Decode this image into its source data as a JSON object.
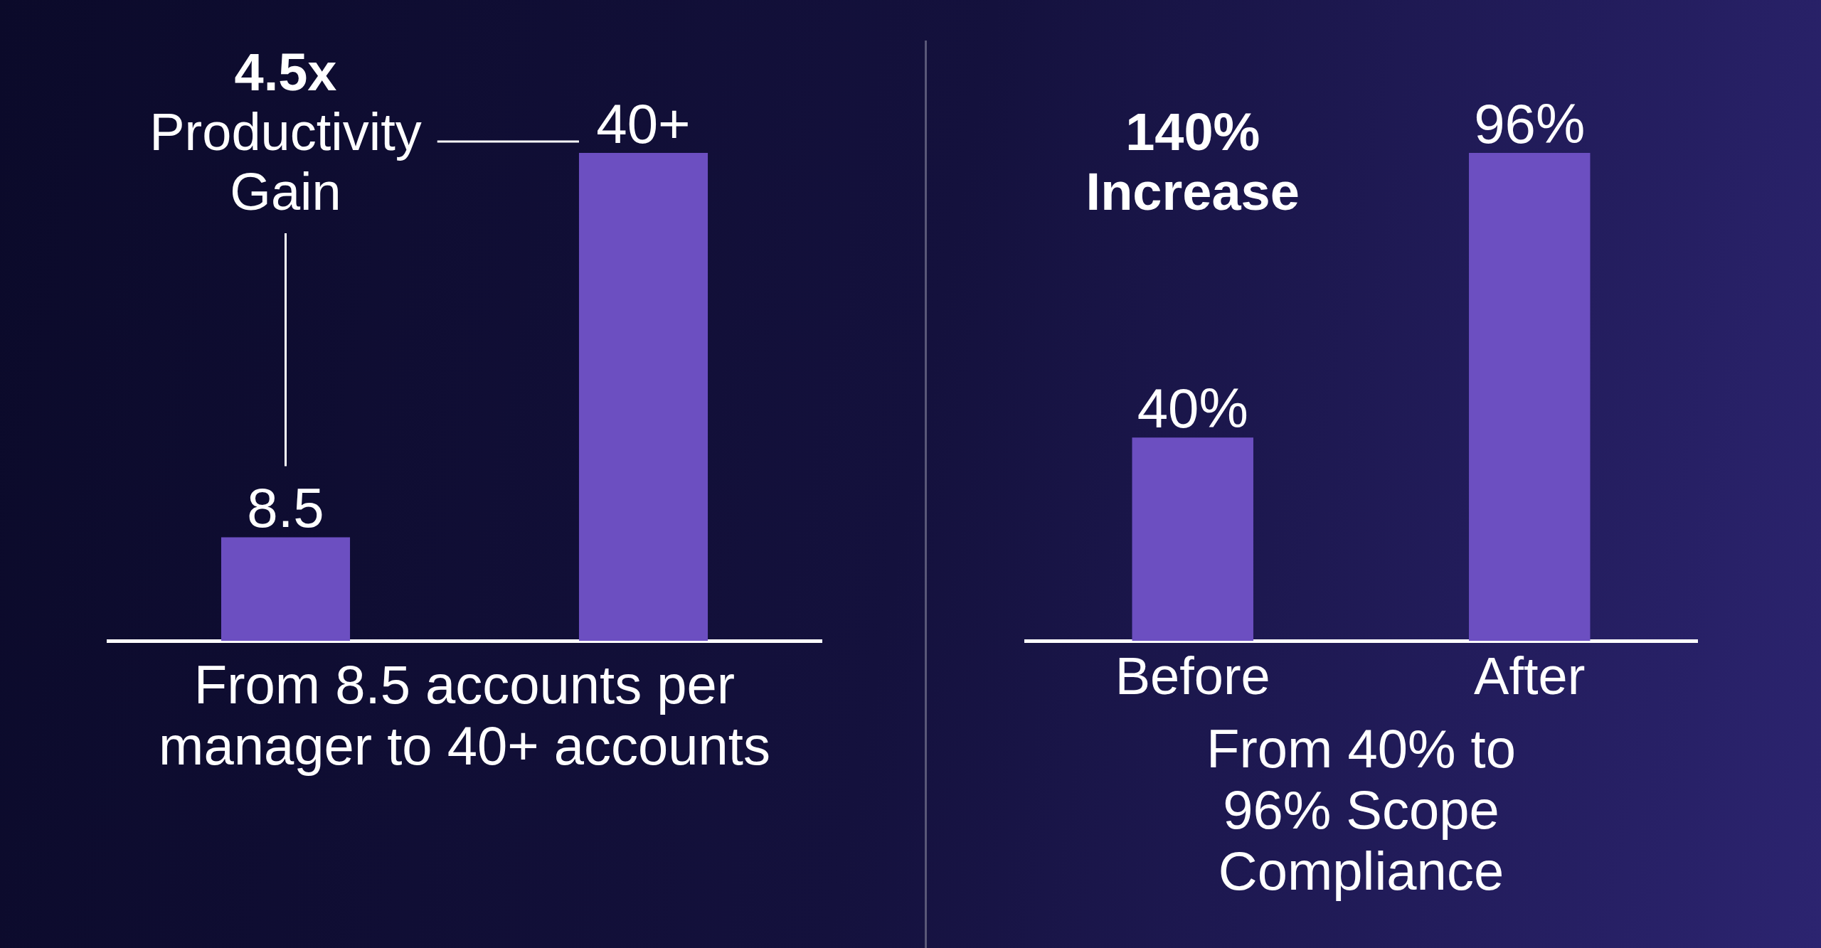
{
  "chart_data": [
    {
      "type": "bar",
      "categories": [
        null,
        null
      ],
      "values": [
        8.5,
        40
      ],
      "value_labels": [
        "8.5",
        "40+"
      ],
      "color": "#6c4fc1",
      "xlabel": "From 8.5 accounts per manager to 40+ accounts",
      "annotations": [
        "4.5x",
        "Productivity Gain"
      ],
      "grid": false,
      "legend": false,
      "tick_labels": "x"
    },
    {
      "type": "bar",
      "categories": [
        "Before",
        "After"
      ],
      "values": [
        40,
        96
      ],
      "value_labels": [
        "40%",
        "96%"
      ],
      "color": "#6c4fc1",
      "xlabel": "From 40% to 96% Scope Compliance",
      "annotations": [
        "140% Increase"
      ],
      "grid": false,
      "legend": false,
      "tick_labels": "x"
    }
  ]
}
